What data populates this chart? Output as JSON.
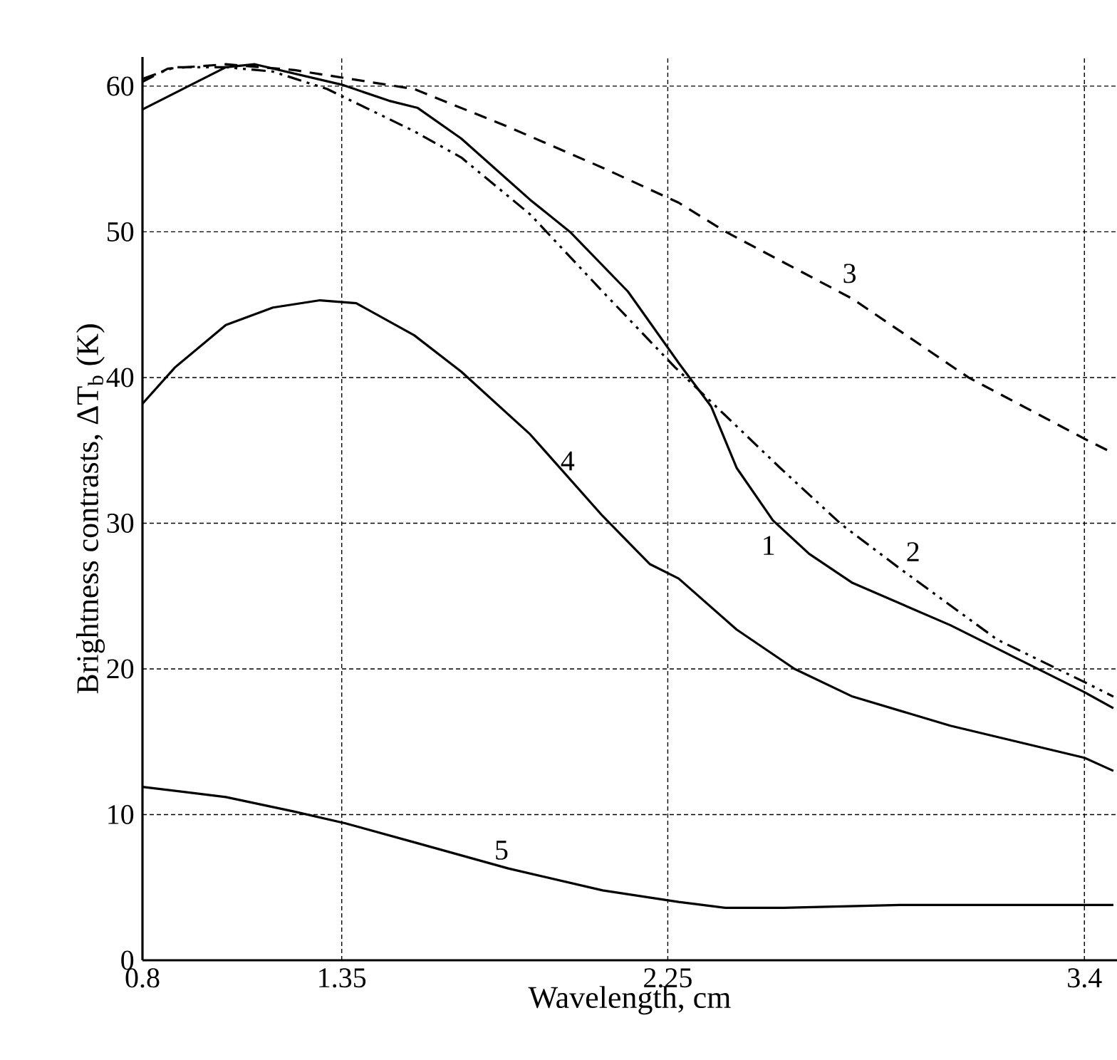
{
  "chart_data": {
    "type": "line",
    "xlabel": "Wavelength, cm",
    "ylabel": "Brightness contrasts, ΔT$_{b}$ (K)",
    "xlim": [
      0.8,
      3.49
    ],
    "ylim": [
      0,
      62
    ],
    "xticks": [
      0.8,
      1.35,
      2.25,
      3.4
    ],
    "yticks": [
      0,
      10,
      20,
      30,
      40,
      50,
      60
    ],
    "grid": true,
    "marker": "none",
    "series": [
      {
        "name": "1",
        "color": "#000000",
        "line_style": "solid",
        "x": [
          0.8,
          1.03,
          1.11,
          1.35,
          1.48,
          1.56,
          1.68,
          1.87,
          1.98,
          2.14,
          2.28,
          2.31,
          2.37,
          2.44,
          2.54,
          2.64,
          2.76,
          3.03,
          3.4,
          3.48
        ],
        "values": [
          58.4,
          61.3,
          61.5,
          60.1,
          59.0,
          58.5,
          56.4,
          52.2,
          50.0,
          45.9,
          41.0,
          40.0,
          38.0,
          33.8,
          30.2,
          27.9,
          25.9,
          23.0,
          18.4,
          17.3
        ]
      },
      {
        "name": "2",
        "color": "#000000",
        "line_style": "dashdot",
        "x": [
          0.8,
          0.89,
          1.03,
          1.16,
          1.31,
          1.55,
          1.68,
          1.87,
          2.07,
          2.27,
          2.56,
          2.73,
          2.89,
          3.16,
          3.4,
          3.48
        ],
        "values": [
          60.5,
          61.3,
          61.3,
          61.0,
          59.8,
          56.9,
          55.1,
          51.2,
          45.9,
          40.7,
          33.8,
          29.9,
          26.9,
          22.0,
          19.1,
          18.1
        ]
      },
      {
        "name": "3",
        "color": "#000000",
        "line_style": "dashed",
        "x": [
          0.8,
          0.87,
          1.03,
          1.22,
          1.55,
          1.81,
          2.07,
          2.28,
          2.41,
          2.76,
          3.08,
          3.4,
          3.48
        ],
        "values": [
          60.3,
          61.2,
          61.5,
          61.1,
          59.8,
          57.2,
          54.4,
          52.0,
          50.0,
          45.4,
          40.0,
          35.8,
          34.8
        ]
      },
      {
        "name": "4",
        "color": "#000000",
        "line_style": "solid",
        "x": [
          0.8,
          0.89,
          1.03,
          1.16,
          1.29,
          1.39,
          1.55,
          1.68,
          1.87,
          2.07,
          2.2,
          2.28,
          2.44,
          2.6,
          2.76,
          3.03,
          3.4,
          3.48
        ],
        "values": [
          38.2,
          40.7,
          43.6,
          44.8,
          45.3,
          45.1,
          42.9,
          40.4,
          36.1,
          30.5,
          27.2,
          26.2,
          22.7,
          20.0,
          18.1,
          16.1,
          13.9,
          13.0
        ]
      },
      {
        "name": "5",
        "color": "#000000",
        "line_style": "solid",
        "x": [
          0.8,
          1.03,
          1.22,
          1.36,
          1.55,
          1.81,
          2.07,
          2.28,
          2.41,
          2.57,
          2.89,
          3.48
        ],
        "values": [
          11.9,
          11.2,
          10.2,
          9.4,
          8.1,
          6.3,
          4.8,
          4.0,
          3.6,
          3.6,
          3.8,
          3.8
        ]
      }
    ]
  }
}
